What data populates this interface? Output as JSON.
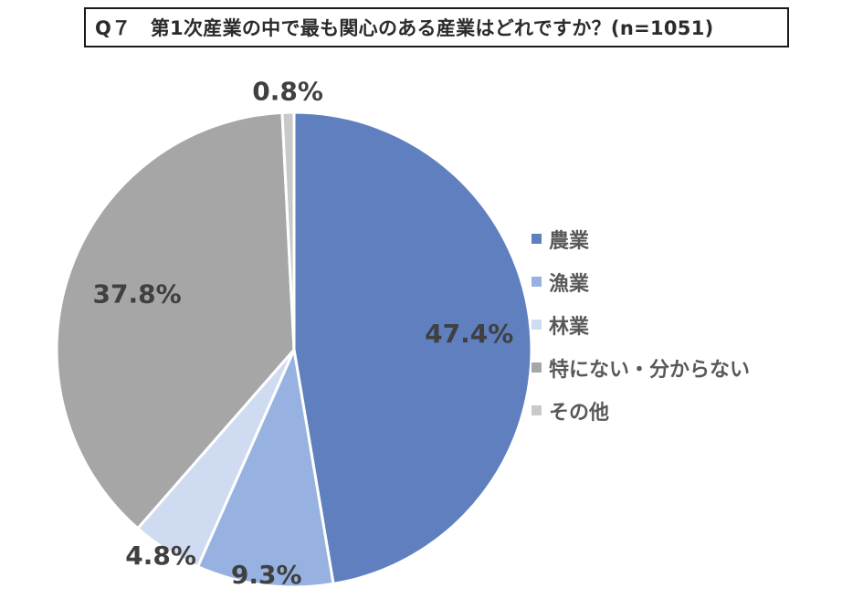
{
  "title": "Q７　第1次産業の中で最も関心のある産業はどれですか？(n=1051)",
  "chart_data": {
    "type": "pie",
    "categories": [
      "農業",
      "漁業",
      "林業",
      "特にない・分からない",
      "その他"
    ],
    "values": [
      47.4,
      9.3,
      4.8,
      37.8,
      0.8
    ],
    "value_labels": [
      "47.4%",
      "9.3%",
      "4.8%",
      "37.8%",
      "0.8%"
    ],
    "colors": [
      "#5f7fbf",
      "#97b2e0",
      "#cfdbf0",
      "#a6a6a6",
      "#c9c9c9"
    ],
    "legend_position": "right",
    "start_angle_deg": 0,
    "direction": "clockwise"
  }
}
